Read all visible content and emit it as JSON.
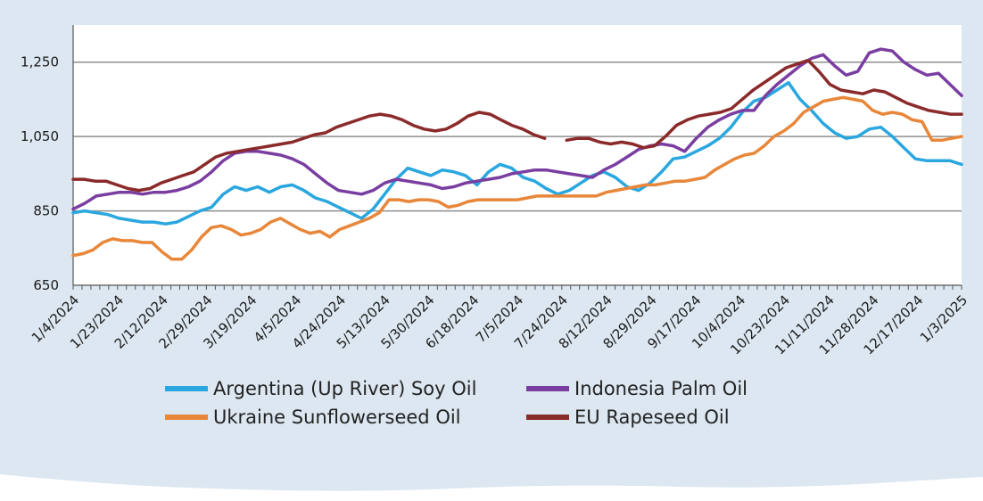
{
  "chart_data": {
    "type": "line",
    "title": "",
    "xlabel": "",
    "ylabel": "",
    "ylim": [
      650,
      1350
    ],
    "yticks": [
      650,
      850,
      1050,
      1250
    ],
    "ytick_labels": [
      "650",
      "850",
      "1,050",
      "1,250"
    ],
    "grid": "horizontal",
    "legend_position": "bottom",
    "xticks": [
      "1/4/2024",
      "1/23/2024",
      "2/12/2024",
      "2/29/2024",
      "3/19/2024",
      "4/5/2024",
      "4/24/2024",
      "5/13/2024",
      "5/30/2024",
      "6/18/2024",
      "7/5/2024",
      "7/24/2024",
      "8/12/2024",
      "8/29/2024",
      "9/17/2024",
      "10/4/2024",
      "10/23/2024",
      "11/11/2024",
      "11/28/2024",
      "12/17/2024",
      "1/3/2025"
    ],
    "series": [
      {
        "name": "Argentina (Up River) Soy Oil",
        "color": "#2aa7df",
        "values": [
          845,
          850,
          845,
          840,
          830,
          825,
          820,
          820,
          815,
          820,
          835,
          850,
          860,
          895,
          915,
          905,
          915,
          900,
          915,
          920,
          905,
          885,
          875,
          860,
          845,
          830,
          855,
          895,
          935,
          965,
          955,
          945,
          960,
          955,
          945,
          920,
          955,
          975,
          965,
          940,
          930,
          910,
          895,
          905,
          925,
          945,
          955,
          940,
          915,
          905,
          925,
          955,
          990,
          995,
          1010,
          1025,
          1045,
          1075,
          1115,
          1145,
          1155,
          1175,
          1195,
          1150,
          1120,
          1085,
          1060,
          1045,
          1050,
          1070,
          1075,
          1050,
          1020,
          990,
          985,
          985,
          985,
          975
        ]
      },
      {
        "name": "Ukraine Sunflowerseed Oil",
        "color": "#e8873a",
        "values": [
          730,
          735,
          745,
          765,
          775,
          770,
          770,
          765,
          765,
          740,
          720,
          720,
          745,
          780,
          805,
          810,
          800,
          785,
          790,
          800,
          820,
          830,
          815,
          800,
          790,
          795,
          780,
          800,
          810,
          820,
          830,
          845,
          880,
          880,
          875,
          880,
          880,
          875,
          860,
          865,
          875,
          880,
          880,
          880,
          880,
          880,
          885,
          890,
          890,
          890,
          890,
          890,
          890,
          890,
          900,
          905,
          910,
          915,
          920,
          920,
          925,
          930,
          930,
          935,
          940,
          960,
          975,
          990,
          1000,
          1005,
          1025,
          1050,
          1065,
          1085,
          1115,
          1130,
          1145,
          1150,
          1155,
          1150,
          1145,
          1120,
          1110,
          1115,
          1110,
          1095,
          1090,
          1040,
          1040,
          1045,
          1050
        ]
      },
      {
        "name": "Indonesia Palm Oil",
        "color": "#7a3ea1",
        "values": [
          855,
          870,
          890,
          895,
          900,
          900,
          895,
          900,
          900,
          905,
          915,
          930,
          955,
          985,
          1005,
          1010,
          1010,
          1005,
          1000,
          990,
          975,
          950,
          925,
          905,
          900,
          895,
          905,
          925,
          935,
          930,
          925,
          920,
          910,
          915,
          925,
          930,
          935,
          940,
          950,
          955,
          960,
          960,
          955,
          950,
          945,
          940,
          960,
          975,
          995,
          1015,
          1025,
          1030,
          1025,
          1010,
          1045,
          1075,
          1095,
          1110,
          1120,
          1120,
          1160,
          1190,
          1215,
          1240,
          1260,
          1270,
          1240,
          1215,
          1225,
          1275,
          1285,
          1280,
          1250,
          1230,
          1215,
          1220,
          1190,
          1160
        ]
      },
      {
        "name": "EU Rapeseed Oil",
        "color": "#8b2a2a",
        "values": [
          935,
          935,
          930,
          930,
          920,
          910,
          905,
          910,
          925,
          935,
          945,
          955,
          975,
          995,
          1005,
          1010,
          1015,
          1020,
          1025,
          1030,
          1035,
          1045,
          1055,
          1060,
          1075,
          1085,
          1095,
          1105,
          1110,
          1105,
          1095,
          1080,
          1070,
          1065,
          1070,
          1085,
          1105,
          1115,
          1110,
          1095,
          1080,
          1070,
          1055,
          1045,
          null,
          1040,
          1045,
          1045,
          1035,
          1030,
          1035,
          1030,
          1020,
          1025,
          1050,
          1080,
          1095,
          1105,
          1110,
          1115,
          1125,
          1150,
          1175,
          1195,
          1215,
          1235,
          1245,
          1255,
          1225,
          1190,
          1175,
          1170,
          1165,
          1175,
          1170,
          1155,
          1140,
          1130,
          1120,
          1115,
          1110,
          1110
        ]
      }
    ]
  }
}
